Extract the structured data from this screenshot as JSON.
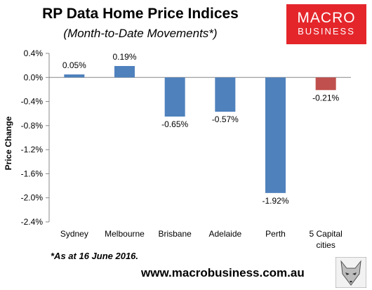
{
  "header": {
    "title": "RP Data Home Price Indices",
    "subtitle": "(Month-to-Date Movements*)"
  },
  "logo": {
    "line1": "MACRO",
    "line2": "BUSINESS",
    "color": "#e4262b"
  },
  "footer": {
    "note": "*As at 16 June 2016.",
    "url": "www.macrobusiness.com.au",
    "mascot_icon": "fox-icon"
  },
  "chart_data": {
    "type": "bar",
    "categories": [
      "Sydney",
      "Melbourne",
      "Brisbane",
      "Adelaide",
      "Perth",
      "5 Capital cities"
    ],
    "values": [
      0.05,
      0.19,
      -0.65,
      -0.57,
      -1.92,
      -0.21
    ],
    "data_labels": [
      "0.05%",
      "0.19%",
      "-0.65%",
      "-0.57%",
      "-1.92%",
      "-0.21%"
    ],
    "colors": [
      "#4f81bd",
      "#4f81bd",
      "#4f81bd",
      "#4f81bd",
      "#4f81bd",
      "#c0504d"
    ],
    "title": "",
    "xlabel": "",
    "ylabel": "Price Change",
    "ylim": [
      -2.4,
      0.4
    ],
    "yticks": [
      0.4,
      0.0,
      -0.4,
      -0.8,
      -1.2,
      -1.6,
      -2.0,
      -2.4
    ],
    "ytick_labels": [
      "0.4%",
      "0.0%",
      "-0.4%",
      "-0.8%",
      "-1.2%",
      "-1.6%",
      "-2.0%",
      "-2.4%"
    ],
    "grid": false,
    "legend": "none"
  }
}
